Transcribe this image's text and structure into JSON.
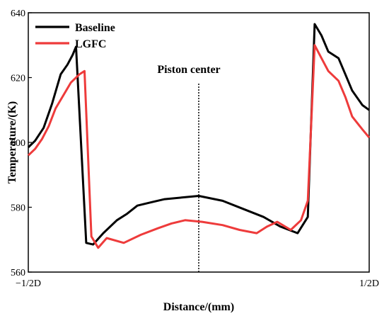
{
  "chart_data": {
    "type": "line",
    "title": "",
    "xlabel": "Distance/(mm)",
    "ylabel": "Temperature/(K)",
    "xlim": [
      0,
      100
    ],
    "ylim": [
      560,
      640
    ],
    "x_tick_labels": [
      {
        "x": 0,
        "label": "−1/2D"
      },
      {
        "x": 100,
        "label": "1/2D"
      }
    ],
    "y_ticks": [
      560,
      580,
      600,
      620,
      640
    ],
    "legend": {
      "placement": "top-left"
    },
    "annotation": {
      "text": "Piston center",
      "x": 50
    },
    "grid": false,
    "series": [
      {
        "name": "Baseline",
        "color": "#000000",
        "points": [
          [
            0,
            598.5
          ],
          [
            2,
            600.5
          ],
          [
            4.5,
            604.5
          ],
          [
            7,
            612
          ],
          [
            9.5,
            621
          ],
          [
            11.5,
            624
          ],
          [
            13,
            627
          ],
          [
            14,
            629.5
          ],
          [
            17,
            569
          ],
          [
            19,
            568.5
          ],
          [
            22,
            572
          ],
          [
            26,
            576
          ],
          [
            29,
            578
          ],
          [
            32,
            580.5
          ],
          [
            36,
            581.5
          ],
          [
            40,
            582.5
          ],
          [
            45,
            583
          ],
          [
            50,
            583.5
          ],
          [
            57,
            582
          ],
          [
            63,
            579.5
          ],
          [
            69,
            577
          ],
          [
            74,
            574
          ],
          [
            79,
            572
          ],
          [
            82,
            577
          ],
          [
            84,
            636.5
          ],
          [
            86,
            633
          ],
          [
            88,
            628
          ],
          [
            91,
            626
          ],
          [
            93,
            621
          ],
          [
            95,
            616
          ],
          [
            98,
            611.5
          ],
          [
            100,
            610
          ]
        ]
      },
      {
        "name": "LGFC",
        "color": "#ee3b3b",
        "points": [
          [
            0,
            596
          ],
          [
            2,
            598
          ],
          [
            4,
            601
          ],
          [
            6,
            605
          ],
          [
            8,
            610.5
          ],
          [
            10,
            614
          ],
          [
            12.5,
            618.5
          ],
          [
            15,
            621
          ],
          [
            16.5,
            622
          ],
          [
            18.5,
            571
          ],
          [
            20.5,
            567.5
          ],
          [
            23,
            570.5
          ],
          [
            28,
            569
          ],
          [
            33,
            571.5
          ],
          [
            38,
            573.5
          ],
          [
            42,
            575
          ],
          [
            46,
            576
          ],
          [
            51,
            575.5
          ],
          [
            57,
            574.5
          ],
          [
            62,
            573
          ],
          [
            67,
            572
          ],
          [
            70,
            574
          ],
          [
            73,
            575.5
          ],
          [
            77,
            573
          ],
          [
            80,
            576
          ],
          [
            82,
            582
          ],
          [
            84,
            630
          ],
          [
            86,
            626
          ],
          [
            88,
            622
          ],
          [
            91,
            619
          ],
          [
            93,
            614
          ],
          [
            95,
            608
          ],
          [
            98,
            604
          ],
          [
            100,
            601.5
          ]
        ]
      }
    ]
  }
}
